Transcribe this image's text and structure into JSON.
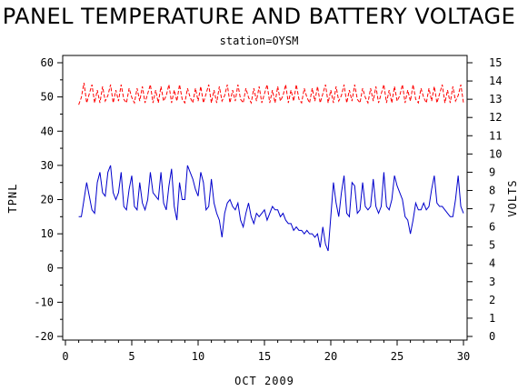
{
  "chart_data": {
    "type": "line",
    "title": "PANEL TEMPERATURE AND BATTERY VOLTAGE",
    "subtitle": "station=OYSM",
    "xlabel": "OCT 2009",
    "ylabel_left": "TPNL",
    "ylabel_right": "VOLTS",
    "xlim": [
      0,
      30
    ],
    "ylim_left": [
      -20,
      60
    ],
    "ylim_right": [
      0,
      15
    ],
    "x_ticks": [
      0,
      5,
      10,
      15,
      20,
      25,
      30
    ],
    "y_ticks_left": [
      -20,
      -10,
      0,
      10,
      20,
      30,
      40,
      50,
      60
    ],
    "y_ticks_right": [
      0,
      1,
      2,
      3,
      4,
      5,
      6,
      7,
      8,
      9,
      10,
      11,
      12,
      13,
      14,
      15
    ],
    "grid": false,
    "series": [
      {
        "axis": "left",
        "color": "#0000cc",
        "style": "solid",
        "x": [
          1.0,
          1.2,
          1.4,
          1.6,
          1.8,
          2.0,
          2.2,
          2.4,
          2.6,
          2.8,
          3.0,
          3.2,
          3.4,
          3.6,
          3.8,
          4.0,
          4.2,
          4.4,
          4.6,
          4.8,
          5.0,
          5.2,
          5.4,
          5.6,
          5.8,
          6.0,
          6.2,
          6.4,
          6.6,
          6.8,
          7.0,
          7.2,
          7.4,
          7.6,
          7.8,
          8.0,
          8.2,
          8.4,
          8.6,
          8.8,
          9.0,
          9.2,
          9.4,
          9.6,
          9.8,
          10.0,
          10.2,
          10.4,
          10.6,
          10.8,
          11.0,
          11.2,
          11.4,
          11.6,
          11.8,
          12.0,
          12.2,
          12.4,
          12.6,
          12.8,
          13.0,
          13.2,
          13.4,
          13.6,
          13.8,
          14.0,
          14.2,
          14.4,
          14.6,
          14.8,
          15.0,
          15.2,
          15.4,
          15.6,
          15.8,
          16.0,
          16.2,
          16.4,
          16.6,
          16.8,
          17.0,
          17.2,
          17.4,
          17.6,
          17.8,
          18.0,
          18.2,
          18.4,
          18.6,
          18.8,
          19.0,
          19.2,
          19.4,
          19.6,
          19.8,
          20.0,
          20.2,
          20.4,
          20.6,
          20.8,
          21.0,
          21.2,
          21.4,
          21.6,
          21.8,
          22.0,
          22.2,
          22.4,
          22.6,
          22.8,
          23.0,
          23.2,
          23.4,
          23.6,
          23.8,
          24.0,
          24.2,
          24.4,
          24.6,
          24.8,
          25.0,
          25.2,
          25.4,
          25.6,
          25.8,
          26.0,
          26.2,
          26.4,
          26.6,
          26.8,
          27.0,
          27.2,
          27.4,
          27.6,
          27.8,
          28.0,
          28.2,
          28.4,
          28.6,
          28.8,
          29.0,
          29.2,
          29.4,
          29.6,
          29.8,
          30.0
        ],
        "values": [
          15,
          15,
          20,
          25,
          21,
          17,
          16,
          25,
          28,
          22,
          21,
          28,
          30,
          22,
          20,
          22,
          28,
          18,
          17,
          23,
          27,
          18,
          17,
          25,
          19,
          17,
          20,
          28,
          22,
          21,
          20,
          28,
          19,
          17,
          24,
          29,
          18,
          14,
          25,
          20,
          20,
          30,
          28,
          26,
          23,
          21,
          28,
          25,
          17,
          18,
          26,
          19,
          16,
          14,
          9,
          16,
          19,
          20,
          18,
          17,
          19,
          14,
          12,
          16,
          19,
          15,
          13,
          16,
          15,
          16,
          17,
          14,
          16,
          18,
          17,
          17,
          15,
          16,
          14,
          13,
          13,
          11,
          12,
          11,
          11,
          10,
          11,
          10,
          10,
          9,
          10,
          6,
          12,
          7,
          5,
          15,
          25,
          19,
          15,
          22,
          27,
          16,
          15,
          25,
          24,
          16,
          17,
          25,
          18,
          17,
          18,
          26,
          18,
          16,
          18,
          28,
          18,
          17,
          20,
          27,
          24,
          22,
          20,
          15,
          14,
          10,
          14,
          19,
          17,
          17,
          19,
          17,
          18,
          23,
          27,
          19,
          18,
          18,
          17,
          16,
          15,
          15,
          20,
          27,
          18,
          16
        ]
      },
      {
        "axis": "right",
        "color": "#ff0000",
        "style": "dashed",
        "x": [
          1.0,
          1.2,
          1.4,
          1.6,
          1.8,
          2.0,
          2.2,
          2.4,
          2.6,
          2.8,
          3.0,
          3.2,
          3.4,
          3.6,
          3.8,
          4.0,
          4.2,
          4.4,
          4.6,
          4.8,
          5.0,
          5.2,
          5.4,
          5.6,
          5.8,
          6.0,
          6.2,
          6.4,
          6.6,
          6.8,
          7.0,
          7.2,
          7.4,
          7.6,
          7.8,
          8.0,
          8.2,
          8.4,
          8.6,
          8.8,
          9.0,
          9.2,
          9.4,
          9.6,
          9.8,
          10.0,
          10.2,
          10.4,
          10.6,
          10.8,
          11.0,
          11.2,
          11.4,
          11.6,
          11.8,
          12.0,
          12.2,
          12.4,
          12.6,
          12.8,
          13.0,
          13.2,
          13.4,
          13.6,
          13.8,
          14.0,
          14.2,
          14.4,
          14.6,
          14.8,
          15.0,
          15.2,
          15.4,
          15.6,
          15.8,
          16.0,
          16.2,
          16.4,
          16.6,
          16.8,
          17.0,
          17.2,
          17.4,
          17.6,
          17.8,
          18.0,
          18.2,
          18.4,
          18.6,
          18.8,
          19.0,
          19.2,
          19.4,
          19.6,
          19.8,
          20.0,
          20.2,
          20.4,
          20.6,
          20.8,
          21.0,
          21.2,
          21.4,
          21.6,
          21.8,
          22.0,
          22.2,
          22.4,
          22.6,
          22.8,
          23.0,
          23.2,
          23.4,
          23.6,
          23.8,
          24.0,
          24.2,
          24.4,
          24.6,
          24.8,
          25.0,
          25.2,
          25.4,
          25.6,
          25.8,
          26.0,
          26.2,
          26.4,
          26.6,
          26.8,
          27.0,
          27.2,
          27.4,
          27.6,
          27.8,
          28.0,
          28.2,
          28.4,
          28.6,
          28.8,
          29.0,
          29.2,
          29.4,
          29.6,
          29.8,
          30.0
        ],
        "values": [
          12.7,
          13.1,
          13.9,
          12.8,
          13.3,
          13.8,
          12.8,
          13.5,
          12.8,
          13.7,
          12.9,
          13.2,
          13.8,
          12.8,
          13.5,
          12.9,
          13.8,
          13.0,
          12.8,
          13.6,
          13.1,
          12.8,
          13.6,
          12.9,
          13.7,
          12.8,
          13.3,
          13.8,
          12.8,
          13.5,
          12.8,
          13.7,
          12.9,
          13.2,
          13.8,
          12.8,
          13.5,
          12.9,
          13.8,
          13.0,
          12.8,
          13.6,
          13.1,
          12.8,
          13.6,
          12.9,
          13.7,
          12.8,
          13.3,
          13.8,
          12.8,
          13.5,
          12.8,
          13.7,
          12.9,
          13.2,
          13.8,
          12.8,
          13.5,
          12.9,
          13.8,
          13.0,
          12.8,
          13.6,
          13.1,
          12.8,
          13.6,
          12.9,
          13.7,
          12.8,
          13.3,
          13.8,
          12.8,
          13.5,
          12.8,
          13.7,
          12.9,
          13.2,
          13.8,
          12.8,
          13.5,
          12.9,
          13.8,
          13.0,
          12.8,
          13.6,
          13.1,
          12.8,
          13.6,
          12.9,
          13.7,
          12.8,
          13.3,
          13.8,
          12.8,
          13.5,
          12.8,
          13.7,
          12.9,
          13.2,
          13.8,
          12.8,
          13.5,
          12.9,
          13.8,
          13.0,
          12.8,
          13.6,
          13.1,
          12.8,
          13.6,
          12.9,
          13.7,
          12.8,
          13.3,
          13.8,
          12.8,
          13.5,
          12.8,
          13.7,
          12.9,
          13.2,
          13.8,
          12.8,
          13.5,
          12.9,
          13.8,
          13.0,
          12.8,
          13.6,
          13.1,
          12.8,
          13.6,
          12.9,
          13.7,
          12.8,
          13.3,
          13.8,
          12.8,
          13.5,
          12.8,
          13.7,
          12.9,
          13.2,
          13.8,
          12.8
        ]
      }
    ]
  }
}
